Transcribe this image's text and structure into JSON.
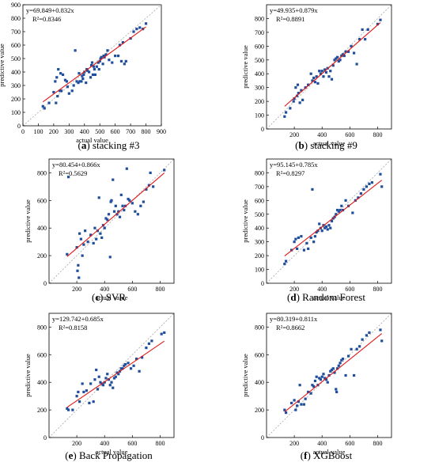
{
  "figure": {
    "x_axis_label": "actual value",
    "y_axis_label": "predictive value"
  },
  "chart_data": [
    {
      "type": "scatter",
      "panel_letter": "a",
      "caption_name": "stacking #3",
      "equation": "y=69.849+0.832x",
      "r2": "R²=0.8346",
      "slope": 0.832,
      "intercept": 69.849,
      "xlim": [
        0,
        900
      ],
      "ylim": [
        0,
        900
      ],
      "xticks": [
        0,
        100,
        200,
        300,
        400,
        500,
        600,
        700,
        800,
        900
      ],
      "yticks": [
        0,
        100,
        200,
        300,
        400,
        500,
        600,
        700,
        800,
        900
      ],
      "points": [
        [
          130,
          145
        ],
        [
          140,
          130
        ],
        [
          170,
          170
        ],
        [
          200,
          250
        ],
        [
          210,
          330
        ],
        [
          215,
          170
        ],
        [
          220,
          360
        ],
        [
          225,
          220
        ],
        [
          230,
          420
        ],
        [
          240,
          260
        ],
        [
          245,
          390
        ],
        [
          250,
          260
        ],
        [
          260,
          380
        ],
        [
          275,
          340
        ],
        [
          285,
          330
        ],
        [
          290,
          290
        ],
        [
          300,
          240
        ],
        [
          320,
          260
        ],
        [
          330,
          300
        ],
        [
          340,
          560
        ],
        [
          350,
          330
        ],
        [
          360,
          320
        ],
        [
          365,
          390
        ],
        [
          370,
          330
        ],
        [
          380,
          330
        ],
        [
          385,
          370
        ],
        [
          390,
          350
        ],
        [
          395,
          380
        ],
        [
          400,
          400
        ],
        [
          410,
          320
        ],
        [
          415,
          420
        ],
        [
          420,
          410
        ],
        [
          430,
          400
        ],
        [
          440,
          360
        ],
        [
          445,
          450
        ],
        [
          450,
          470
        ],
        [
          455,
          380
        ],
        [
          460,
          440
        ],
        [
          465,
          420
        ],
        [
          470,
          380
        ],
        [
          480,
          440
        ],
        [
          490,
          470
        ],
        [
          495,
          420
        ],
        [
          500,
          480
        ],
        [
          505,
          500
        ],
        [
          510,
          510
        ],
        [
          520,
          460
        ],
        [
          525,
          520
        ],
        [
          530,
          510
        ],
        [
          540,
          530
        ],
        [
          550,
          560
        ],
        [
          560,
          490
        ],
        [
          580,
          470
        ],
        [
          600,
          520
        ],
        [
          620,
          520
        ],
        [
          630,
          600
        ],
        [
          640,
          480
        ],
        [
          650,
          620
        ],
        [
          660,
          460
        ],
        [
          670,
          480
        ],
        [
          700,
          650
        ],
        [
          720,
          700
        ],
        [
          740,
          720
        ],
        [
          760,
          730
        ],
        [
          780,
          720
        ],
        [
          800,
          760
        ]
      ]
    },
    {
      "type": "scatter",
      "panel_letter": "b",
      "caption_name": "stacking #9",
      "equation": "y=49.935+0.879x",
      "r2": "R²=0.8891",
      "slope": 0.879,
      "intercept": 49.935,
      "xlim": [
        0,
        900
      ],
      "ylim": [
        0,
        900
      ],
      "xticks": [
        200,
        400,
        600,
        800
      ],
      "yticks": [
        0,
        100,
        200,
        300,
        400,
        500,
        600,
        700,
        800
      ],
      "points": [
        [
          130,
          90
        ],
        [
          140,
          120
        ],
        [
          170,
          150
        ],
        [
          195,
          200
        ],
        [
          200,
          220
        ],
        [
          210,
          300
        ],
        [
          220,
          240
        ],
        [
          225,
          320
        ],
        [
          230,
          260
        ],
        [
          240,
          190
        ],
        [
          250,
          280
        ],
        [
          260,
          210
        ],
        [
          280,
          300
        ],
        [
          300,
          320
        ],
        [
          320,
          400
        ],
        [
          330,
          350
        ],
        [
          340,
          370
        ],
        [
          350,
          340
        ],
        [
          360,
          380
        ],
        [
          370,
          330
        ],
        [
          380,
          420
        ],
        [
          390,
          400
        ],
        [
          400,
          420
        ],
        [
          410,
          380
        ],
        [
          420,
          430
        ],
        [
          430,
          410
        ],
        [
          440,
          440
        ],
        [
          450,
          380
        ],
        [
          460,
          420
        ],
        [
          470,
          360
        ],
        [
          480,
          460
        ],
        [
          490,
          500
        ],
        [
          500,
          510
        ],
        [
          510,
          520
        ],
        [
          520,
          490
        ],
        [
          530,
          500
        ],
        [
          540,
          530
        ],
        [
          550,
          540
        ],
        [
          560,
          530
        ],
        [
          570,
          560
        ],
        [
          590,
          560
        ],
        [
          610,
          600
        ],
        [
          630,
          550
        ],
        [
          650,
          470
        ],
        [
          670,
          650
        ],
        [
          690,
          720
        ],
        [
          710,
          650
        ],
        [
          730,
          720
        ],
        [
          800,
          760
        ],
        [
          820,
          790
        ]
      ]
    },
    {
      "type": "scatter",
      "panel_letter": "c",
      "caption_name": "SVR",
      "equation": "y=80.454+0.866x",
      "r2": "R²=0.5629",
      "slope": 0.866,
      "intercept": 80.454,
      "xlim": [
        0,
        900
      ],
      "ylim": [
        0,
        900
      ],
      "xticks": [
        200,
        400,
        600,
        800
      ],
      "yticks": [
        0,
        200,
        400,
        600,
        800
      ],
      "points": [
        [
          130,
          210
        ],
        [
          140,
          770
        ],
        [
          200,
          260
        ],
        [
          205,
          90
        ],
        [
          210,
          130
        ],
        [
          215,
          40
        ],
        [
          220,
          360
        ],
        [
          230,
          320
        ],
        [
          240,
          200
        ],
        [
          250,
          280
        ],
        [
          260,
          380
        ],
        [
          280,
          300
        ],
        [
          300,
          350
        ],
        [
          320,
          290
        ],
        [
          330,
          400
        ],
        [
          340,
          320
        ],
        [
          350,
          380
        ],
        [
          360,
          620
        ],
        [
          370,
          360
        ],
        [
          380,
          330
        ],
        [
          390,
          420
        ],
        [
          400,
          400
        ],
        [
          410,
          470
        ],
        [
          420,
          460
        ],
        [
          430,
          500
        ],
        [
          440,
          190
        ],
        [
          445,
          590
        ],
        [
          450,
          600
        ],
        [
          460,
          750
        ],
        [
          470,
          520
        ],
        [
          480,
          560
        ],
        [
          490,
          500
        ],
        [
          500,
          520
        ],
        [
          510,
          480
        ],
        [
          520,
          640
        ],
        [
          530,
          560
        ],
        [
          540,
          530
        ],
        [
          550,
          560
        ],
        [
          560,
          830
        ],
        [
          570,
          610
        ],
        [
          580,
          600
        ],
        [
          600,
          580
        ],
        [
          620,
          520
        ],
        [
          640,
          500
        ],
        [
          660,
          560
        ],
        [
          680,
          590
        ],
        [
          700,
          680
        ],
        [
          720,
          710
        ],
        [
          730,
          800
        ],
        [
          750,
          700
        ],
        [
          830,
          820
        ]
      ]
    },
    {
      "type": "scatter",
      "panel_letter": "d",
      "caption_name": "Random Forest",
      "equation": "y=95.145+0.785x",
      "r2": "R²=0.8297",
      "slope": 0.785,
      "intercept": 95.145,
      "xlim": [
        0,
        900
      ],
      "ylim": [
        0,
        900
      ],
      "xticks": [
        200,
        400,
        600,
        800
      ],
      "yticks": [
        0,
        100,
        200,
        300,
        400,
        500,
        600,
        700,
        800
      ],
      "points": [
        [
          130,
          140
        ],
        [
          140,
          160
        ],
        [
          180,
          240
        ],
        [
          200,
          300
        ],
        [
          210,
          320
        ],
        [
          220,
          250
        ],
        [
          230,
          330
        ],
        [
          250,
          340
        ],
        [
          270,
          240
        ],
        [
          290,
          290
        ],
        [
          300,
          250
        ],
        [
          320,
          330
        ],
        [
          330,
          680
        ],
        [
          340,
          300
        ],
        [
          350,
          340
        ],
        [
          360,
          370
        ],
        [
          370,
          380
        ],
        [
          380,
          430
        ],
        [
          390,
          400
        ],
        [
          400,
          380
        ],
        [
          410,
          420
        ],
        [
          420,
          400
        ],
        [
          430,
          410
        ],
        [
          440,
          390
        ],
        [
          450,
          420
        ],
        [
          460,
          400
        ],
        [
          470,
          450
        ],
        [
          480,
          470
        ],
        [
          490,
          480
        ],
        [
          500,
          500
        ],
        [
          510,
          530
        ],
        [
          520,
          520
        ],
        [
          530,
          530
        ],
        [
          540,
          560
        ],
        [
          550,
          530
        ],
        [
          570,
          600
        ],
        [
          590,
          560
        ],
        [
          620,
          510
        ],
        [
          640,
          600
        ],
        [
          660,
          620
        ],
        [
          680,
          650
        ],
        [
          700,
          680
        ],
        [
          720,
          700
        ],
        [
          740,
          720
        ],
        [
          760,
          730
        ],
        [
          820,
          790
        ],
        [
          830,
          700
        ]
      ]
    },
    {
      "type": "scatter",
      "panel_letter": "e",
      "caption_name": "Back Propagation",
      "equation": "y=129.742+0.685x",
      "r2": "R²=0.8158",
      "slope": 0.685,
      "intercept": 129.742,
      "xlim": [
        0,
        900
      ],
      "ylim": [
        0,
        900
      ],
      "xticks": [
        200,
        400,
        600,
        800
      ],
      "yticks": [
        0,
        200,
        400,
        600,
        800
      ],
      "points": [
        [
          130,
          210
        ],
        [
          140,
          200
        ],
        [
          170,
          200
        ],
        [
          200,
          300
        ],
        [
          210,
          330
        ],
        [
          220,
          260
        ],
        [
          240,
          390
        ],
        [
          250,
          330
        ],
        [
          270,
          340
        ],
        [
          290,
          250
        ],
        [
          300,
          390
        ],
        [
          320,
          260
        ],
        [
          330,
          420
        ],
        [
          340,
          490
        ],
        [
          350,
          350
        ],
        [
          360,
          440
        ],
        [
          370,
          400
        ],
        [
          380,
          390
        ],
        [
          390,
          380
        ],
        [
          400,
          400
        ],
        [
          410,
          430
        ],
        [
          420,
          460
        ],
        [
          430,
          420
        ],
        [
          440,
          380
        ],
        [
          450,
          400
        ],
        [
          460,
          360
        ],
        [
          470,
          430
        ],
        [
          480,
          440
        ],
        [
          490,
          470
        ],
        [
          500,
          460
        ],
        [
          510,
          480
        ],
        [
          520,
          500
        ],
        [
          530,
          500
        ],
        [
          540,
          520
        ],
        [
          550,
          530
        ],
        [
          570,
          540
        ],
        [
          590,
          500
        ],
        [
          610,
          520
        ],
        [
          630,
          570
        ],
        [
          650,
          480
        ],
        [
          670,
          580
        ],
        [
          700,
          650
        ],
        [
          720,
          680
        ],
        [
          740,
          700
        ],
        [
          810,
          750
        ],
        [
          830,
          760
        ]
      ]
    },
    {
      "type": "scatter",
      "panel_letter": "f",
      "caption_name": "XGBoost",
      "equation": "y=80.319+0.811x",
      "r2": "R²=0.8662",
      "slope": 0.811,
      "intercept": 80.319,
      "xlim": [
        0,
        900
      ],
      "ylim": [
        0,
        900
      ],
      "xticks": [
        200,
        400,
        600,
        800
      ],
      "yticks": [
        0,
        200,
        400,
        600,
        800
      ],
      "points": [
        [
          130,
          200
        ],
        [
          140,
          180
        ],
        [
          180,
          250
        ],
        [
          200,
          270
        ],
        [
          210,
          200
        ],
        [
          220,
          230
        ],
        [
          230,
          260
        ],
        [
          240,
          380
        ],
        [
          250,
          240
        ],
        [
          270,
          240
        ],
        [
          280,
          280
        ],
        [
          300,
          330
        ],
        [
          320,
          320
        ],
        [
          330,
          380
        ],
        [
          340,
          370
        ],
        [
          350,
          410
        ],
        [
          360,
          440
        ],
        [
          370,
          380
        ],
        [
          380,
          430
        ],
        [
          390,
          420
        ],
        [
          400,
          440
        ],
        [
          410,
          460
        ],
        [
          420,
          430
        ],
        [
          430,
          420
        ],
        [
          440,
          400
        ],
        [
          450,
          450
        ],
        [
          460,
          480
        ],
        [
          470,
          490
        ],
        [
          480,
          500
        ],
        [
          490,
          470
        ],
        [
          500,
          350
        ],
        [
          505,
          330
        ],
        [
          510,
          500
        ],
        [
          520,
          520
        ],
        [
          530,
          540
        ],
        [
          540,
          560
        ],
        [
          550,
          570
        ],
        [
          570,
          450
        ],
        [
          590,
          590
        ],
        [
          610,
          640
        ],
        [
          630,
          450
        ],
        [
          650,
          640
        ],
        [
          670,
          660
        ],
        [
          690,
          710
        ],
        [
          720,
          740
        ],
        [
          740,
          760
        ],
        [
          820,
          780
        ],
        [
          830,
          700
        ]
      ]
    }
  ]
}
